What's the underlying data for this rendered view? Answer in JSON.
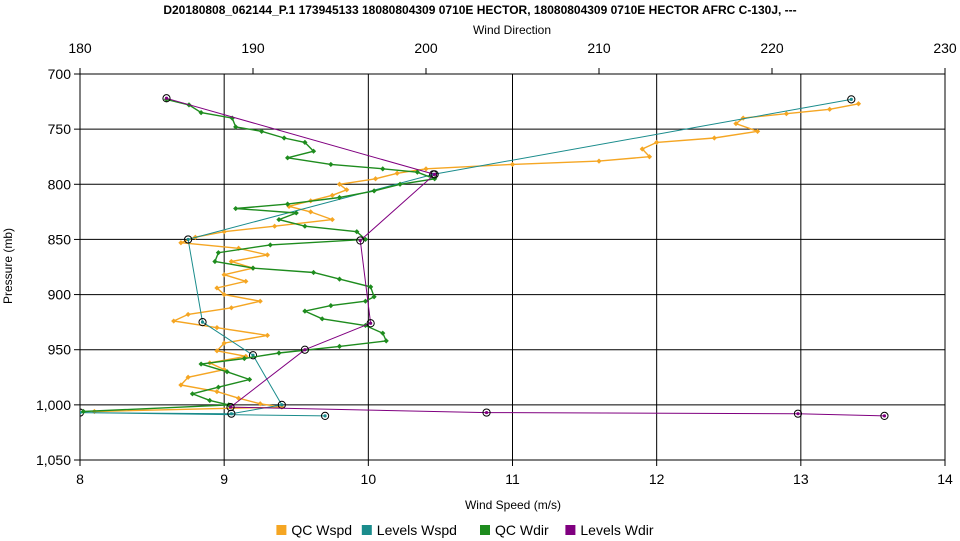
{
  "chart_data": {
    "type": "line",
    "title": "D20180808_062144_P.1 173945133 18080804309 0710E HECTOR, 18080804309 0710E HECTOR AFRC C-130J, ---",
    "top_axis": {
      "label": "Wind Direction",
      "range": [
        180,
        230
      ],
      "ticks": [
        "180",
        "190",
        "200",
        "210",
        "220",
        "230"
      ]
    },
    "bottom_axis": {
      "label": "Wind Speed (m/s)",
      "range": [
        8,
        14
      ],
      "ticks": [
        "8",
        "9",
        "10",
        "11",
        "12",
        "13",
        "14"
      ]
    },
    "y_axis": {
      "label": "Pressure (mb)",
      "range": [
        700,
        1050
      ],
      "inverted": true,
      "ticks": [
        "700",
        "750",
        "800",
        "850",
        "900",
        "950",
        "1,000",
        "1,050"
      ]
    },
    "grid": true,
    "legend_position": "bottom",
    "series": [
      {
        "name": "QC Wspd",
        "axis": "bottom",
        "color": "#f5a623",
        "marker": "diamond",
        "points": [
          [
            13.4,
            727
          ],
          [
            13.2,
            732
          ],
          [
            12.9,
            736
          ],
          [
            12.6,
            740
          ],
          [
            12.55,
            745
          ],
          [
            12.7,
            752
          ],
          [
            12.4,
            758
          ],
          [
            12.0,
            762
          ],
          [
            11.9,
            768
          ],
          [
            11.95,
            775
          ],
          [
            11.6,
            779
          ],
          [
            11.0,
            782
          ],
          [
            10.4,
            786
          ],
          [
            10.2,
            790
          ],
          [
            10.05,
            795
          ],
          [
            9.8,
            800
          ],
          [
            9.85,
            805
          ],
          [
            9.75,
            810
          ],
          [
            9.6,
            815
          ],
          [
            9.45,
            820
          ],
          [
            9.6,
            825
          ],
          [
            9.75,
            832
          ],
          [
            9.35,
            838
          ],
          [
            9.0,
            843
          ],
          [
            8.8,
            848
          ],
          [
            8.7,
            853
          ],
          [
            9.1,
            858
          ],
          [
            9.3,
            864
          ],
          [
            9.05,
            870
          ],
          [
            9.2,
            876
          ],
          [
            9.0,
            882
          ],
          [
            9.15,
            888
          ],
          [
            8.95,
            894
          ],
          [
            9.0,
            900
          ],
          [
            9.25,
            906
          ],
          [
            9.05,
            912
          ],
          [
            8.75,
            918
          ],
          [
            8.65,
            924
          ],
          [
            8.95,
            930
          ],
          [
            9.3,
            937
          ],
          [
            9.0,
            944
          ],
          [
            8.95,
            951
          ],
          [
            9.15,
            956
          ],
          [
            8.9,
            962
          ],
          [
            9.0,
            968
          ],
          [
            8.75,
            975
          ],
          [
            8.7,
            982
          ],
          [
            8.95,
            988
          ],
          [
            9.1,
            994
          ],
          [
            9.25,
            999
          ],
          [
            9.4,
            1002
          ],
          [
            8.1,
            1006
          ]
        ]
      },
      {
        "name": "Levels Wspd",
        "axis": "bottom",
        "color": "#1a8c8c",
        "marker": "circle",
        "points": [
          [
            13.35,
            723
          ],
          [
            10.45,
            791
          ],
          [
            8.75,
            850
          ],
          [
            8.85,
            925
          ],
          [
            9.2,
            955
          ],
          [
            9.4,
            1000
          ],
          [
            9.05,
            1008
          ],
          [
            8.0,
            1007
          ],
          [
            9.7,
            1010
          ]
        ]
      },
      {
        "name": "QC Wdir",
        "axis": "top",
        "color": "#1e8c1e",
        "marker": "diamond",
        "points": [
          [
            185.0,
            723
          ],
          [
            186.3,
            728
          ],
          [
            187.0,
            735
          ],
          [
            188.8,
            740
          ],
          [
            189.0,
            748
          ],
          [
            190.5,
            752
          ],
          [
            191.8,
            758
          ],
          [
            193.0,
            762
          ],
          [
            193.5,
            770
          ],
          [
            192.0,
            776
          ],
          [
            194.5,
            782
          ],
          [
            197.5,
            786
          ],
          [
            199.5,
            789
          ],
          [
            200.5,
            795
          ],
          [
            198.5,
            800
          ],
          [
            197.0,
            806
          ],
          [
            195.0,
            812
          ],
          [
            192.0,
            818
          ],
          [
            189.0,
            822
          ],
          [
            192.5,
            826
          ],
          [
            191.5,
            832
          ],
          [
            193.0,
            838
          ],
          [
            196.0,
            843
          ],
          [
            196.5,
            850
          ],
          [
            191.0,
            855
          ],
          [
            188.0,
            862
          ],
          [
            187.8,
            870
          ],
          [
            190.0,
            876
          ],
          [
            193.5,
            880
          ],
          [
            195.0,
            886
          ],
          [
            196.8,
            893
          ],
          [
            197.0,
            902
          ],
          [
            196.5,
            906
          ],
          [
            194.5,
            910
          ],
          [
            193.0,
            915
          ],
          [
            194.0,
            922
          ],
          [
            196.5,
            928
          ],
          [
            197.5,
            935
          ],
          [
            197.7,
            942
          ],
          [
            195.0,
            947
          ],
          [
            191.5,
            953
          ],
          [
            189.5,
            958
          ],
          [
            187.0,
            963
          ],
          [
            188.5,
            970
          ],
          [
            189.8,
            977
          ],
          [
            188.0,
            984
          ],
          [
            186.5,
            990
          ],
          [
            187.5,
            996
          ],
          [
            188.6,
            1000
          ],
          [
            180.2,
            1006
          ]
        ]
      },
      {
        "name": "Levels Wdir",
        "axis": "top",
        "color": "#800080",
        "marker": "circle",
        "points": [
          [
            185.0,
            722
          ],
          [
            200.5,
            791
          ],
          [
            196.2,
            851
          ],
          [
            196.8,
            926
          ],
          [
            193.0,
            950
          ],
          [
            188.7,
            1002
          ],
          [
            203.5,
            1007
          ],
          [
            221.5,
            1008
          ],
          [
            226.5,
            1010
          ]
        ]
      }
    ]
  }
}
